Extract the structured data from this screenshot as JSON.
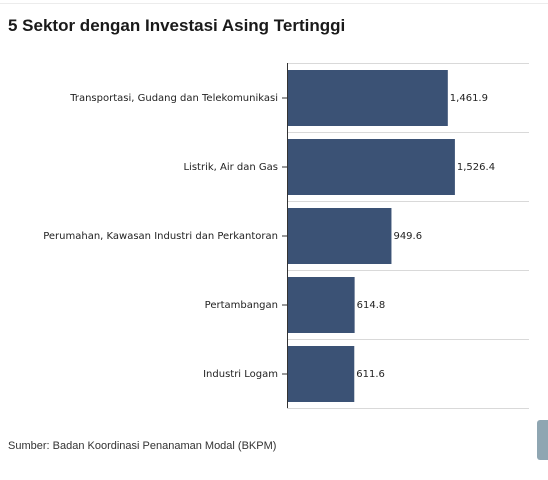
{
  "chart_data": {
    "type": "bar",
    "orientation": "horizontal",
    "title": "5 Sektor dengan Investasi Asing Tertinggi",
    "categories": [
      "Transportasi, Gudang dan Telekomunikasi",
      "Listrik, Air dan Gas",
      "Perumahan, Kawasan Industri dan Perkantoran",
      "Pertambangan",
      "Industri Logam"
    ],
    "values": [
      1461.9,
      1526.4,
      949.6,
      614.8,
      611.6
    ],
    "value_labels": [
      "1,461.9",
      "1,526.4",
      "949.6",
      "614.8",
      "611.6"
    ],
    "xlim": [
      0,
      2200
    ],
    "bar_color": "#3b5275",
    "grid": true,
    "legend": "none"
  },
  "source": "Sumber: Badan Koordinasi Penanaman Modal (BKPM)",
  "colors": {
    "bar": "#3b5275",
    "grid": "#d9d9d9",
    "axis": "#333333",
    "side_tab": "#8fa6b2"
  }
}
